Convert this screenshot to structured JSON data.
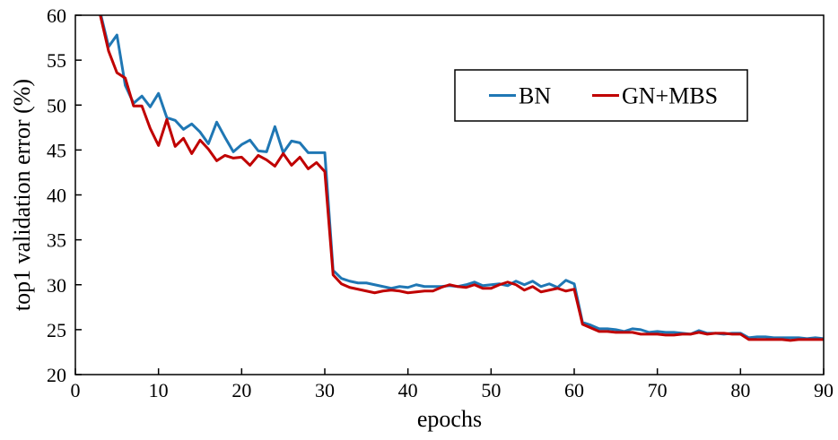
{
  "chart_data": {
    "type": "line",
    "title": "",
    "xlabel": "epochs",
    "ylabel": "top1 validation error (%)",
    "xlim": [
      0,
      90
    ],
    "ylim": [
      20,
      60
    ],
    "xticks": [
      0,
      10,
      20,
      30,
      40,
      50,
      60,
      70,
      80,
      90
    ],
    "yticks": [
      20,
      25,
      30,
      35,
      40,
      45,
      50,
      55,
      60
    ],
    "grid": false,
    "legend_position": "top-right",
    "series": [
      {
        "name": "BN",
        "color": "#1f77b4",
        "x": [
          3,
          4,
          5,
          6,
          7,
          8,
          9,
          10,
          11,
          12,
          13,
          14,
          15,
          16,
          17,
          18,
          19,
          20,
          21,
          22,
          23,
          24,
          25,
          26,
          27,
          28,
          29,
          30,
          31,
          32,
          33,
          34,
          35,
          36,
          37,
          38,
          39,
          40,
          41,
          42,
          43,
          44,
          45,
          46,
          47,
          48,
          49,
          50,
          51,
          52,
          53,
          54,
          55,
          56,
          57,
          58,
          59,
          60,
          61,
          62,
          63,
          64,
          65,
          66,
          67,
          68,
          69,
          70,
          71,
          72,
          73,
          74,
          75,
          76,
          77,
          78,
          79,
          80,
          81,
          82,
          83,
          84,
          85,
          86,
          87,
          88,
          89,
          90
        ],
        "values": [
          60.3,
          56.5,
          57.8,
          52.2,
          50.2,
          51.0,
          49.8,
          51.3,
          48.6,
          48.3,
          47.3,
          47.9,
          47.0,
          45.7,
          48.1,
          46.4,
          44.8,
          45.6,
          46.1,
          44.9,
          44.8,
          47.6,
          44.7,
          46.0,
          45.8,
          44.7,
          44.7,
          44.7,
          31.6,
          30.7,
          30.4,
          30.2,
          30.2,
          30.0,
          29.8,
          29.6,
          29.8,
          29.7,
          30.0,
          29.8,
          29.8,
          29.8,
          29.9,
          29.8,
          30.0,
          30.3,
          29.9,
          30.0,
          30.1,
          29.9,
          30.4,
          30.0,
          30.4,
          29.8,
          30.1,
          29.7,
          30.5,
          30.1,
          25.8,
          25.5,
          25.1,
          25.1,
          25.0,
          24.8,
          25.1,
          25.0,
          24.7,
          24.8,
          24.7,
          24.7,
          24.6,
          24.5,
          24.9,
          24.6,
          24.6,
          24.5,
          24.6,
          24.6,
          24.1,
          24.2,
          24.2,
          24.1,
          24.1,
          24.1,
          24.1,
          24.0,
          24.1,
          24.0
        ]
      },
      {
        "name": "GN+MBS",
        "color": "#c00000",
        "x": [
          3,
          4,
          5,
          6,
          7,
          8,
          9,
          10,
          11,
          12,
          13,
          14,
          15,
          16,
          17,
          18,
          19,
          20,
          21,
          22,
          23,
          24,
          25,
          26,
          27,
          28,
          29,
          30,
          31,
          32,
          33,
          34,
          35,
          36,
          37,
          38,
          39,
          40,
          41,
          42,
          43,
          44,
          45,
          46,
          47,
          48,
          49,
          50,
          51,
          52,
          53,
          54,
          55,
          56,
          57,
          58,
          59,
          60,
          61,
          62,
          63,
          64,
          65,
          66,
          67,
          68,
          69,
          70,
          71,
          72,
          73,
          74,
          75,
          76,
          77,
          78,
          79,
          80,
          81,
          82,
          83,
          84,
          85,
          86,
          87,
          88,
          89,
          90
        ],
        "values": [
          60.0,
          56.0,
          53.6,
          53.0,
          49.9,
          49.9,
          47.4,
          45.5,
          48.4,
          45.4,
          46.3,
          44.6,
          46.1,
          45.1,
          43.8,
          44.4,
          44.1,
          44.2,
          43.3,
          44.4,
          43.9,
          43.2,
          44.6,
          43.3,
          44.2,
          42.9,
          43.6,
          42.6,
          31.1,
          30.1,
          29.7,
          29.5,
          29.3,
          29.1,
          29.3,
          29.4,
          29.3,
          29.1,
          29.2,
          29.3,
          29.3,
          29.7,
          30.0,
          29.8,
          29.7,
          30.0,
          29.6,
          29.6,
          30.0,
          30.3,
          30.0,
          29.4,
          29.8,
          29.2,
          29.4,
          29.6,
          29.3,
          29.5,
          25.6,
          25.2,
          24.8,
          24.8,
          24.7,
          24.7,
          24.7,
          24.5,
          24.5,
          24.5,
          24.4,
          24.4,
          24.5,
          24.5,
          24.7,
          24.5,
          24.6,
          24.6,
          24.5,
          24.5,
          23.9,
          23.9,
          23.9,
          23.9,
          23.9,
          23.8,
          23.9,
          23.9,
          23.9,
          23.9
        ]
      }
    ]
  }
}
